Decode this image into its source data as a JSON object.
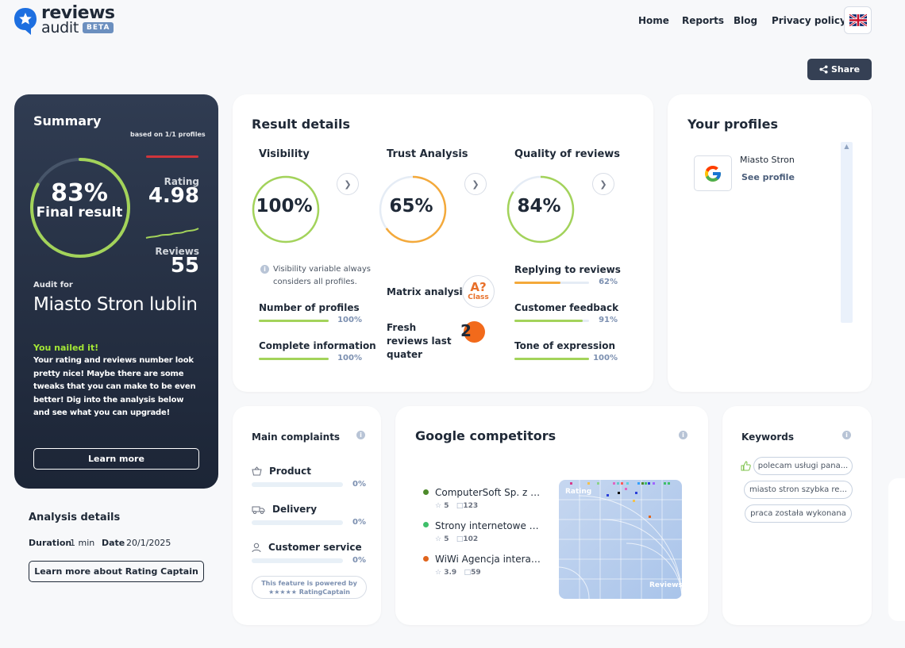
{
  "header": {
    "logo_line1": "reviews",
    "logo_line2": "audit",
    "beta": "BETA",
    "nav": [
      "Home",
      "Reports",
      "Blog",
      "Privacy policy"
    ],
    "share": "Share"
  },
  "summary": {
    "title": "Summary",
    "based_on": "based on 1/1 profiles",
    "final_pct": "83%",
    "final_label": "Final result",
    "final_value": 0.83,
    "rating_label": "Rating",
    "rating_value": "4.98",
    "reviews_label": "Reviews",
    "reviews_value": "55",
    "audit_for": "Audit for",
    "name": "Miasto Stron lublin",
    "nailed": "You nailed it!",
    "text": "Your rating and reviews number look pretty nice! Maybe there are some tweaks that you can make to be even better! Dig into the analysis below and see what you can upgrade!",
    "learn_more": "Learn more"
  },
  "analysis": {
    "title": "Analysis details",
    "duration_label": "Duration",
    "duration_value": "1 min",
    "date_label": "Date",
    "date_value": "20/1/2025",
    "button": "Learn more about Rating Captain"
  },
  "result": {
    "title": "Result details",
    "visibility": {
      "title": "Visibility",
      "value": "100%",
      "fraction": 1.0,
      "note": "Visibility variable always considers all profiles.",
      "items": [
        {
          "label": "Number of profiles",
          "pct": "100%",
          "fraction": 1.0
        },
        {
          "label": "Complete information",
          "pct": "100%",
          "fraction": 1.0
        }
      ]
    },
    "trust": {
      "title": "Trust Analysis",
      "value": "65%",
      "fraction": 0.65,
      "matrix_label": "Matrix analysis",
      "matrix_grade": "A?",
      "matrix_class": "Class",
      "fresh_label": "Fresh reviews last quater",
      "fresh_value": "2"
    },
    "quality": {
      "title": "Quality of reviews",
      "value": "84%",
      "fraction": 0.84,
      "items": [
        {
          "label": "Replying to reviews",
          "pct": "62%",
          "fraction": 0.62
        },
        {
          "label": "Customer feedback",
          "pct": "91%",
          "fraction": 0.91
        },
        {
          "label": "Tone of expression",
          "pct": "100%",
          "fraction": 1.0
        }
      ]
    }
  },
  "profiles": {
    "title": "Your profiles",
    "items": [
      {
        "name": "Miasto Stron",
        "link": "See profile",
        "icon": "google-icon"
      }
    ]
  },
  "complaints": {
    "title": "Main complaints",
    "items": [
      {
        "label": "Product",
        "pct": "0%",
        "icon": "basket-icon"
      },
      {
        "label": "Delivery",
        "pct": "0%",
        "icon": "truck-icon"
      },
      {
        "label": "Customer service",
        "pct": "0%",
        "icon": "person-icon"
      }
    ],
    "powered_line1": "This feature is powered by",
    "powered_line2": "★★★★★ RatingCaptain"
  },
  "competitors": {
    "title": "Google competitors",
    "items": [
      {
        "name": "ComputerSoft Sp. z o.o.",
        "rating": "5",
        "reviews": "123",
        "color": "#4d8a2a"
      },
      {
        "name": "Strony internetowe WebDesign",
        "rating": "5",
        "reviews": "102",
        "color": "#3fbf6a"
      },
      {
        "name": "WiWi Agencja interaktywna",
        "rating": "3.9",
        "reviews": "59",
        "color": "#e0641c"
      }
    ],
    "plot_x_label": "Reviews",
    "plot_y_label": "Rating"
  },
  "keywords": {
    "title": "Keywords",
    "items": [
      "polecam usługi pana...",
      "miasto stron szybka re...",
      "praca została wykonana"
    ]
  },
  "colors": {
    "accent_green": "#a3d35a",
    "accent_orange": "#f4a93a",
    "dark_panel": "#263146"
  }
}
